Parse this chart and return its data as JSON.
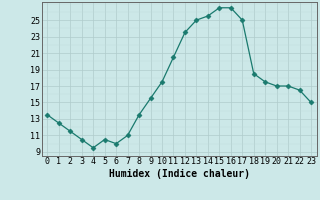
{
  "x": [
    0,
    1,
    2,
    3,
    4,
    5,
    6,
    7,
    8,
    9,
    10,
    11,
    12,
    13,
    14,
    15,
    16,
    17,
    18,
    19,
    20,
    21,
    22,
    23
  ],
  "y": [
    13.5,
    12.5,
    11.5,
    10.5,
    9.5,
    10.5,
    10.0,
    11.0,
    13.5,
    15.5,
    17.5,
    20.5,
    23.5,
    25.0,
    25.5,
    26.5,
    26.5,
    25.0,
    18.5,
    17.5,
    17.0,
    17.0,
    16.5,
    15.0
  ],
  "line_color": "#1a7a6e",
  "marker": "D",
  "marker_size": 2.5,
  "bg_color": "#cce8e8",
  "grid_color_major": "#b0cccc",
  "grid_color_minor": "#c0dada",
  "xlabel": "Humidex (Indice chaleur)",
  "xlabel_fontsize": 7,
  "yticks": [
    9,
    11,
    13,
    15,
    17,
    19,
    21,
    23,
    25
  ],
  "xticks": [
    0,
    1,
    2,
    3,
    4,
    5,
    6,
    7,
    8,
    9,
    10,
    11,
    12,
    13,
    14,
    15,
    16,
    17,
    18,
    19,
    20,
    21,
    22,
    23
  ],
  "ylim": [
    8.5,
    27.2
  ],
  "xlim": [
    -0.5,
    23.5
  ],
  "tick_fontsize": 6
}
